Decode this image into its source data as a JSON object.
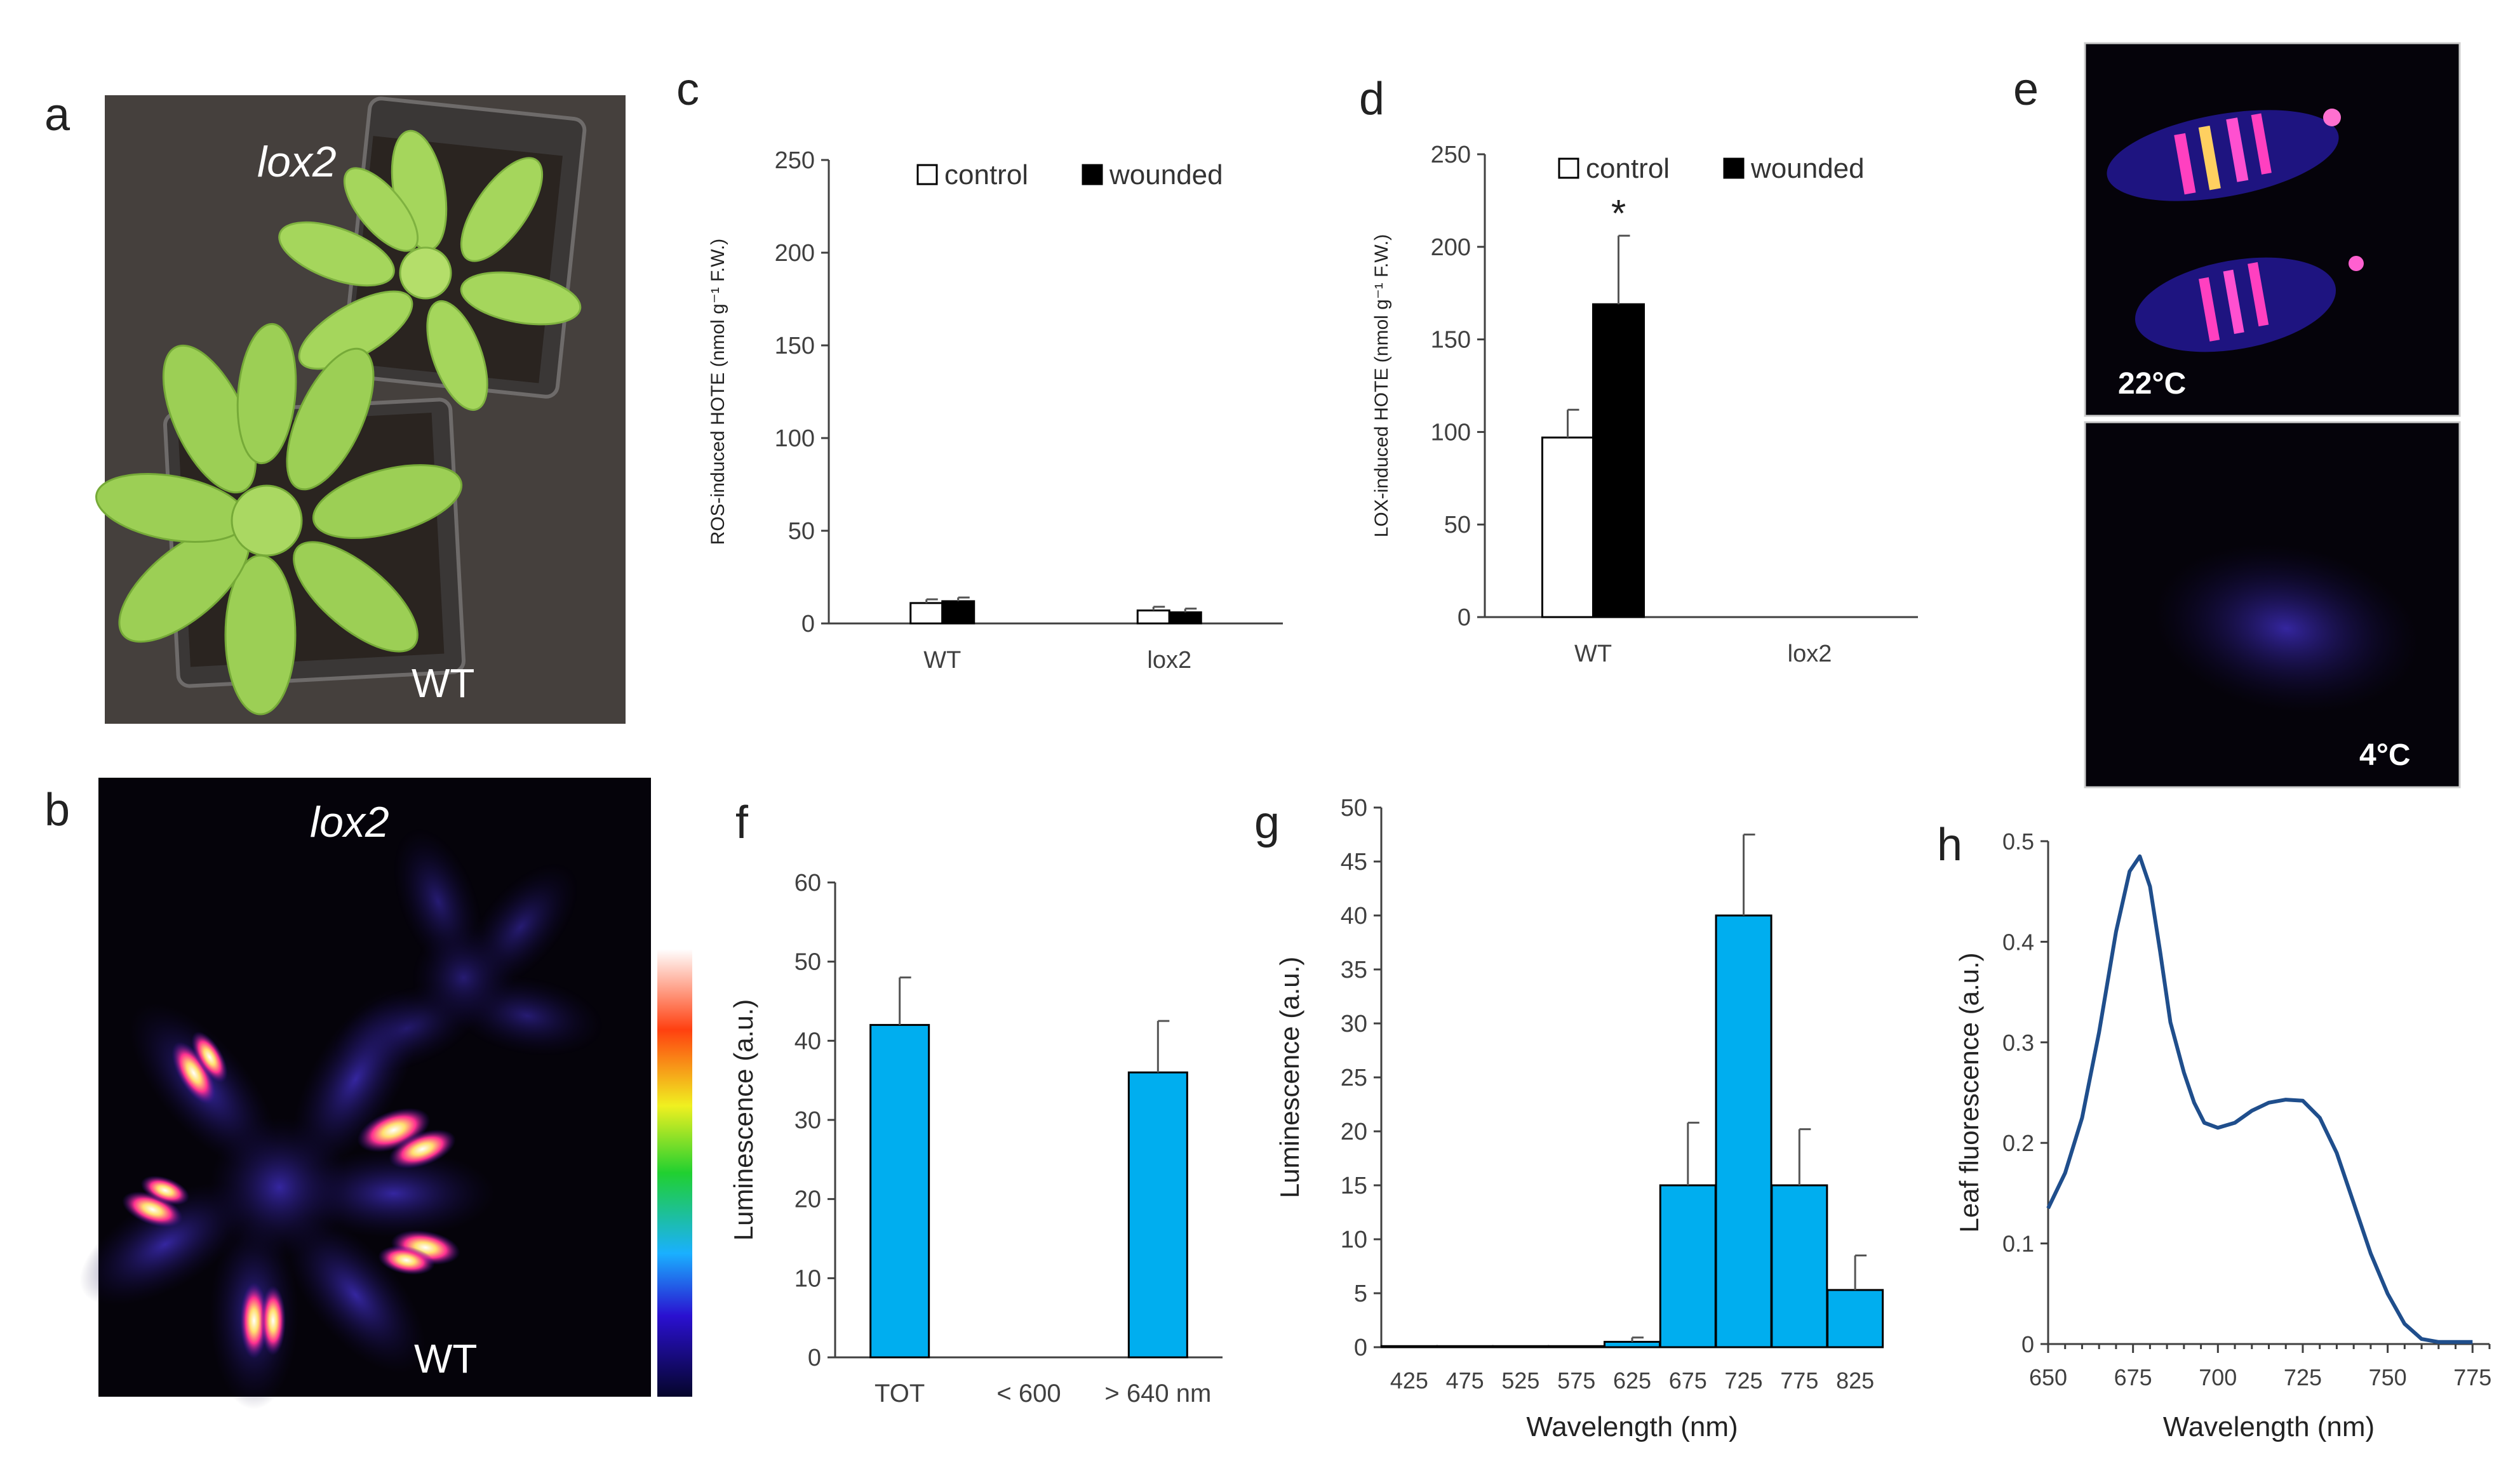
{
  "figure": {
    "panel_letters": {
      "a": "a",
      "b": "b",
      "c": "c",
      "d": "d",
      "e": "e",
      "f": "f",
      "g": "g",
      "h": "h"
    },
    "photo_labels": {
      "lox2": "lox2",
      "wt": "WT"
    },
    "temperature_labels": {
      "warm": "22°C",
      "cold": "4°C"
    }
  },
  "colors": {
    "bar_blue": "#00aeef",
    "line_blue": "#1f4e8c",
    "axis": "#404040",
    "photo_bg": "#4a4542",
    "leaf": "#9ccf55",
    "imaging_bg": "#05030a"
  },
  "chart_data": [
    {
      "panel": "c",
      "type": "bar",
      "title": "",
      "ylabel": "ROS-induced HOTE  (nmol g⁻¹ F.W.)",
      "categories": [
        "WT",
        "lox2"
      ],
      "series": [
        {
          "name": "control",
          "values": [
            11,
            7
          ],
          "errors": [
            2,
            2
          ]
        },
        {
          "name": "wounded",
          "values": [
            12,
            6
          ],
          "errors": [
            2,
            2
          ]
        }
      ],
      "ylim": [
        0,
        250
      ],
      "yticks": [
        "0",
        "50",
        "100",
        "150",
        "200",
        "250"
      ],
      "legend": {
        "control": "control",
        "wounded": "wounded",
        "placement": "top"
      }
    },
    {
      "panel": "d",
      "type": "bar",
      "title": "",
      "ylabel": "LOX-induced HOTE  (nmol g⁻¹ F.W.)",
      "categories": [
        "WT",
        "lox2"
      ],
      "series": [
        {
          "name": "control",
          "values": [
            97,
            0
          ],
          "errors": [
            15,
            0
          ]
        },
        {
          "name": "wounded",
          "values": [
            169,
            0
          ],
          "errors": [
            37,
            0
          ]
        }
      ],
      "ylim": [
        0,
        250
      ],
      "yticks": [
        "0",
        "50",
        "100",
        "150",
        "200",
        "250"
      ],
      "annotation": "*",
      "legend": {
        "control": "control",
        "wounded": "wounded",
        "placement": "top"
      }
    },
    {
      "panel": "f",
      "type": "bar",
      "title": "",
      "ylabel": "Luminescence  (a.u.)",
      "categories": [
        "TOT",
        "< 600",
        "> 640 nm"
      ],
      "values": [
        42,
        0,
        36
      ],
      "errors": [
        6,
        0,
        6.5
      ],
      "ylim": [
        0,
        60
      ],
      "yticks": [
        "0",
        "10",
        "20",
        "30",
        "40",
        "50",
        "60"
      ]
    },
    {
      "panel": "g",
      "type": "bar",
      "title": "",
      "xlabel": "Wavelength  (nm)",
      "ylabel": "Luminescence  (a.u.)",
      "categories": [
        "425",
        "475",
        "525",
        "575",
        "625",
        "675",
        "725",
        "775",
        "825"
      ],
      "values": [
        0.1,
        0.1,
        0.1,
        0.1,
        0.5,
        15,
        40,
        15,
        5.3
      ],
      "errors": [
        0,
        0,
        0,
        0,
        0.4,
        5.8,
        7.5,
        5.2,
        3.2
      ],
      "ylim": [
        0,
        50
      ],
      "yticks": [
        "0",
        "5",
        "10",
        "15",
        "20",
        "25",
        "30",
        "35",
        "40",
        "45",
        "50"
      ]
    },
    {
      "panel": "h",
      "type": "line",
      "title": "",
      "xlabel": "Wavelength  (nm)",
      "ylabel": "Leaf fluorescence  (a.u.)",
      "x": [
        650,
        655,
        660,
        665,
        670,
        674,
        677,
        680,
        683,
        686,
        690,
        693,
        696,
        700,
        705,
        710,
        715,
        720,
        725,
        730,
        735,
        740,
        745,
        750,
        755,
        760,
        765,
        770,
        775
      ],
      "y": [
        0.135,
        0.17,
        0.225,
        0.31,
        0.41,
        0.47,
        0.485,
        0.455,
        0.39,
        0.32,
        0.27,
        0.24,
        0.22,
        0.215,
        0.22,
        0.232,
        0.24,
        0.243,
        0.242,
        0.225,
        0.19,
        0.14,
        0.09,
        0.05,
        0.02,
        0.005,
        0.002,
        0.002,
        0.002
      ],
      "xlim": [
        650,
        780
      ],
      "ylim": [
        0,
        0.5
      ],
      "xticks": [
        "650",
        "675",
        "700",
        "725",
        "750",
        "775"
      ],
      "yticks": [
        "0",
        "0.1",
        "0.2",
        "0.3",
        "0.4",
        "0.5"
      ]
    }
  ]
}
